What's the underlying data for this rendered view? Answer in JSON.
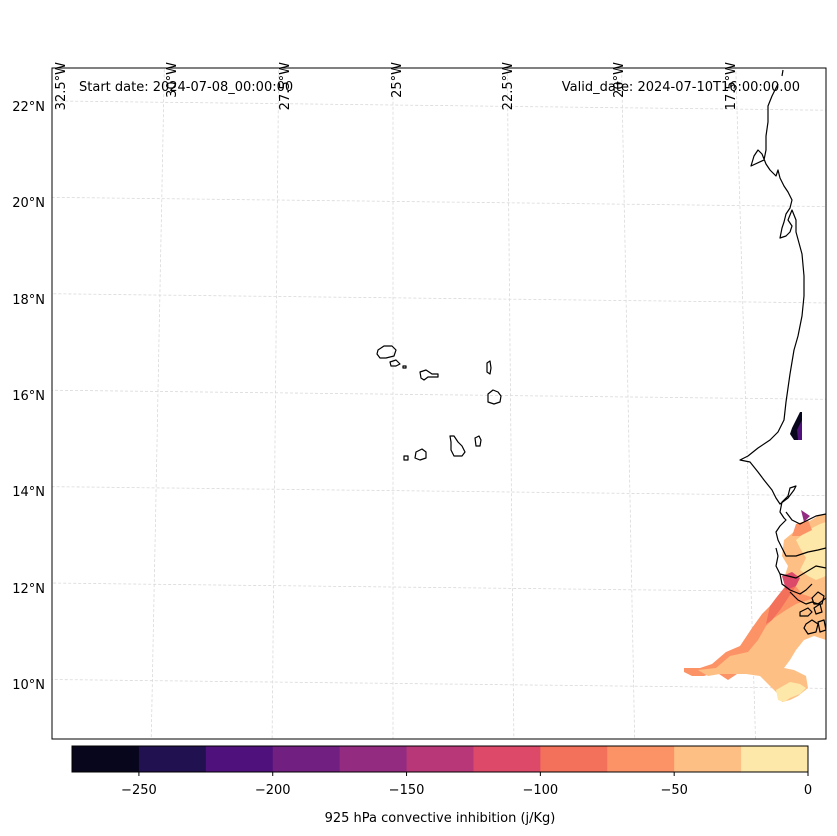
{
  "map": {
    "projection": "lambert-conformal",
    "extent": {
      "lon_min": -32.6,
      "lon_max": -16.2,
      "lat_min": 9.0,
      "lat_max": 22.6
    },
    "start_date_label": "Start date: 2024-07-08_00:00:00",
    "valid_date_label": "Valid_date: 2024-07-10T16:00:00.00",
    "gridlines": {
      "lon_labels": [
        "32.5°W",
        "30°W",
        "27.5°W",
        "25°W",
        "22.5°W",
        "20°W",
        "17.5°W"
      ],
      "lon_values": [
        -32.5,
        -30,
        -27.5,
        -25,
        -22.5,
        -20,
        -17.5
      ],
      "lat_labels": [
        "22°N",
        "20°N",
        "18°N",
        "16°N",
        "14°N",
        "12°N",
        "10°N"
      ],
      "lat_values": [
        22,
        20,
        18,
        16,
        14,
        12,
        10
      ]
    },
    "features": [
      "Cape Verde islands outline",
      "West African coastline (Mauritania, Senegal, Gambia, Guinea-Bissau, Guinea)"
    ],
    "field_description": "Convective inhibition shaded only over land/coastal region in bottom-right; values mostly -75 to 0 with small patch near -250 to -175 near 15°N coast"
  },
  "colorbar": {
    "label": "925 hPa convective inhibition (j/Kg)",
    "min": -275,
    "max": 0,
    "bounds": [
      -275,
      -250,
      -225,
      -200,
      -175,
      -150,
      -125,
      -100,
      -75,
      -50,
      -25,
      0
    ],
    "colors": [
      "#07061c",
      "#221150",
      "#4f117b",
      "#711f81",
      "#932b80",
      "#b73779",
      "#dd4968",
      "#f3705a",
      "#fc9366",
      "#febf84",
      "#fde7a9"
    ],
    "tick_labels": [
      "−250",
      "−200",
      "−150",
      "−100",
      "−50",
      "0"
    ],
    "tick_values": [
      -250,
      -200,
      -150,
      -100,
      -50,
      0
    ]
  },
  "chart_data": {
    "type": "heatmap",
    "title": "",
    "subtitle_left": "Start date: 2024-07-08_00:00:00",
    "subtitle_right": "Valid_date: 2024-07-10T16:00:00.00",
    "xlabel": "",
    "ylabel": "",
    "x_tick_labels": [
      "32.5°W",
      "30°W",
      "27.5°W",
      "25°W",
      "22.5°W",
      "20°W",
      "17.5°W"
    ],
    "y_tick_labels": [
      "22°N",
      "20°N",
      "18°N",
      "16°N",
      "14°N",
      "12°N",
      "10°N"
    ],
    "colorbar_label": "925 hPa convective inhibition (j/Kg)",
    "colorbar_ticks": [
      -250,
      -200,
      -150,
      -100,
      -50,
      0
    ],
    "levels": [
      -275,
      -250,
      -225,
      -200,
      -175,
      -150,
      -125,
      -100,
      -75,
      -50,
      -25,
      0
    ],
    "colormap": "magma",
    "grid": true,
    "regions": [
      {
        "name": "Senegal/Gambia interior",
        "lon": [
          -16.5,
          -16.2
        ],
        "lat": [
          12.3,
          13.5
        ],
        "value_range": [
          -25,
          0
        ]
      },
      {
        "name": "Guinea-Bissau coast",
        "lon": [
          -17.5,
          -16.2
        ],
        "lat": [
          11.0,
          12.3
        ],
        "value_range": [
          -75,
          -25
        ]
      },
      {
        "name": "Guinea offshore tongue",
        "lon": [
          -21.0,
          -16.5
        ],
        "lat": [
          9.6,
          11.0
        ],
        "value_range": [
          -50,
          0
        ]
      },
      {
        "name": "Near-coast spot 15°N",
        "lon": [
          -16.5,
          -16.2
        ],
        "lat": [
          15.0,
          15.3
        ],
        "value_range": [
          -275,
          -175
        ]
      },
      {
        "name": "Cap-Vert tip 13.5°N",
        "lon": [
          -16.8,
          -16.6
        ],
        "lat": [
          13.3,
          13.6
        ],
        "value_range": [
          -175,
          -125
        ]
      }
    ]
  }
}
